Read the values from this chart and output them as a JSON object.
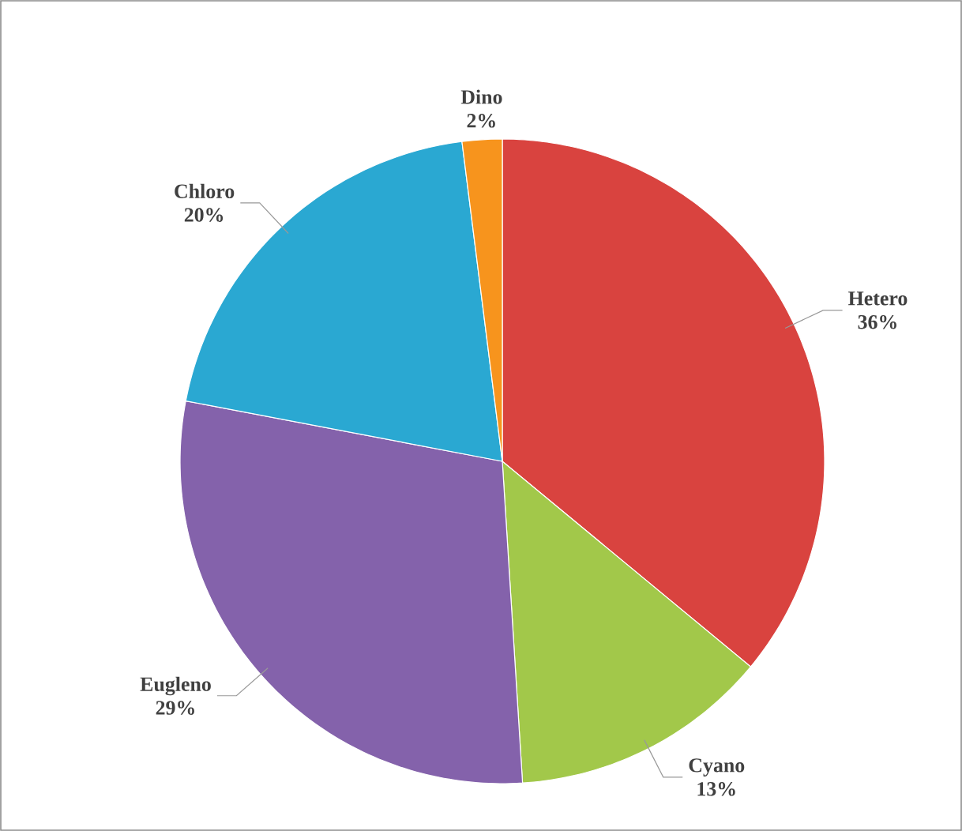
{
  "chart_data": {
    "type": "pie",
    "categories": [
      "Hetero",
      "Cyano",
      "Eugleno",
      "Chloro",
      "Dino"
    ],
    "values": [
      36,
      13,
      29,
      20,
      2
    ],
    "colors": [
      "#d9433f",
      "#a2c84a",
      "#8462ab",
      "#2aa8d2",
      "#f7941d"
    ],
    "value_labels": [
      "36%",
      "13%",
      "29%",
      "20%",
      "2%"
    ]
  }
}
